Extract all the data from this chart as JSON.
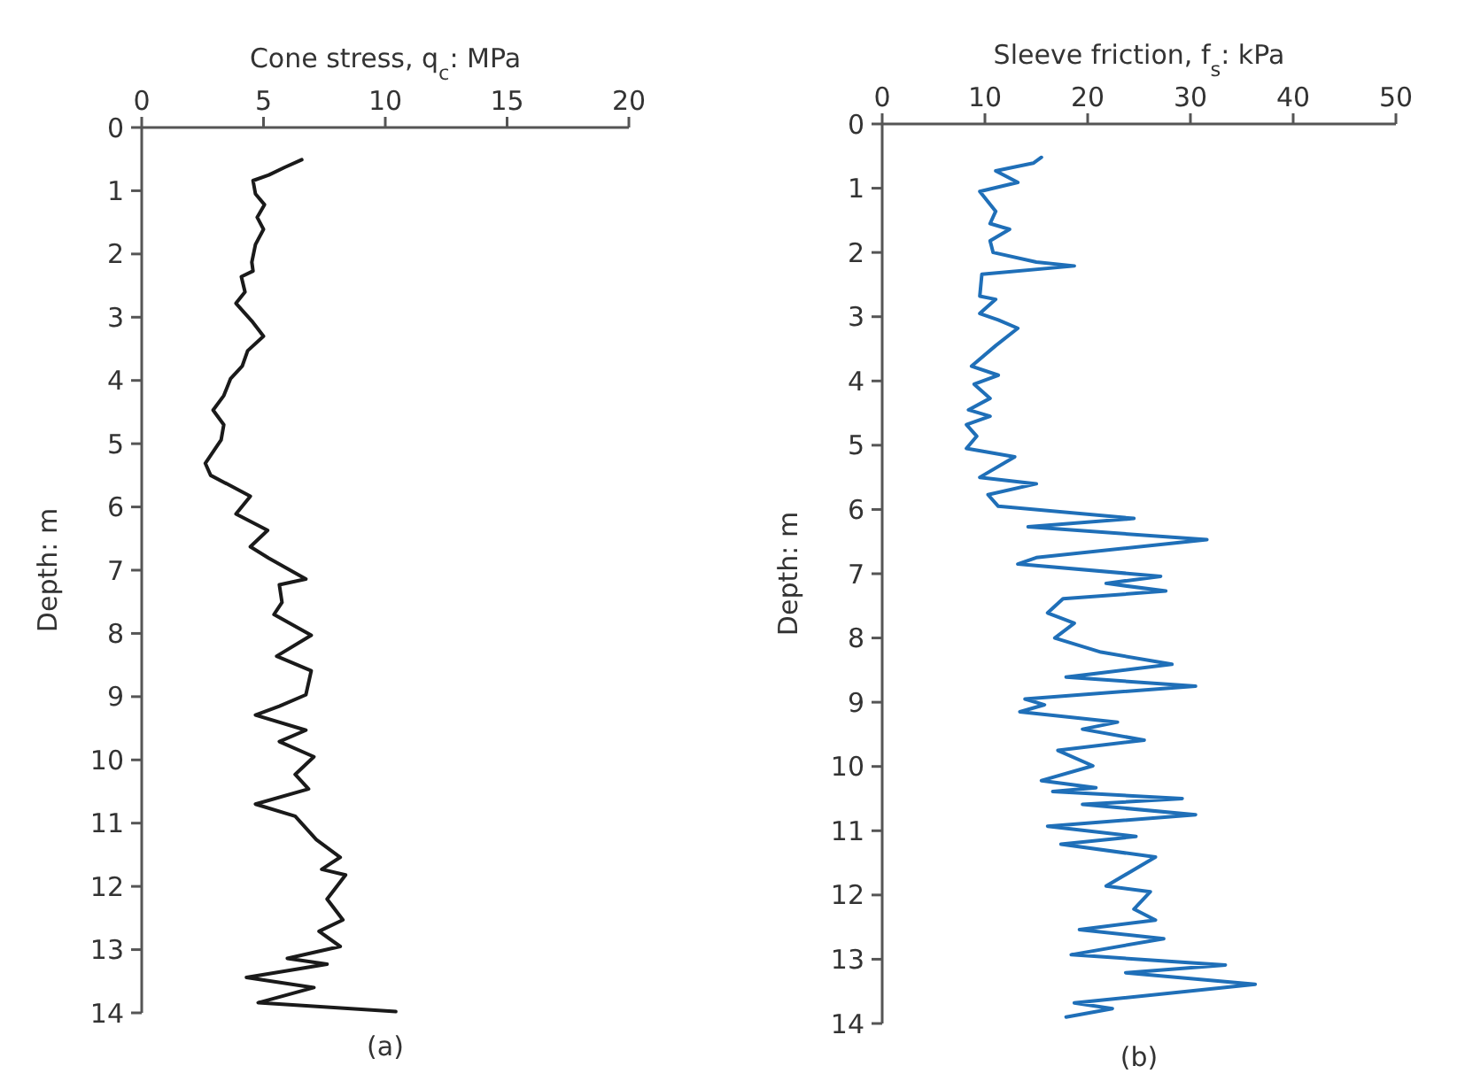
{
  "chart_data": [
    {
      "type": "line",
      "xlabel": "Cone stress, q$_{c}$: MPa",
      "ylabel": "Depth: m",
      "annotations": [
        "(a)"
      ],
      "xlim": [
        0,
        20
      ],
      "xticks": [
        0,
        5,
        10,
        15,
        20
      ],
      "ylim": [
        14,
        0
      ],
      "yticks": [
        0,
        1,
        2,
        3,
        4,
        5,
        6,
        7,
        8,
        9,
        10,
        11,
        12,
        13,
        14
      ],
      "series": [
        {
          "color": "#1a1a1a",
          "x": [
            6.57,
            5.87,
            5.22,
            4.57,
            4.67,
            5.04,
            4.74,
            5.0,
            4.67,
            4.52,
            4.57,
            4.09,
            4.24,
            3.87,
            4.52,
            5.0,
            4.35,
            4.13,
            3.65,
            3.37,
            2.93,
            3.37,
            3.26,
            2.61,
            2.83,
            4.46,
            3.87,
            5.17,
            4.46,
            5.22,
            6.74,
            5.65,
            5.76,
            5.43,
            6.96,
            5.54,
            6.96,
            6.74,
            5.65,
            4.67,
            6.74,
            5.65,
            7.07,
            6.3,
            6.85,
            4.67,
            6.3,
            7.17,
            8.15,
            7.39,
            8.37,
            7.61,
            8.26,
            7.28,
            8.15,
            5.98,
            7.61,
            4.3,
            7.07,
            4.78,
            10.43
          ],
          "values": [
            0.51,
            0.63,
            0.75,
            0.84,
            1.05,
            1.22,
            1.42,
            1.61,
            1.85,
            2.13,
            2.27,
            2.36,
            2.6,
            2.78,
            3.06,
            3.3,
            3.53,
            3.77,
            3.97,
            4.24,
            4.47,
            4.7,
            4.94,
            5.31,
            5.5,
            5.83,
            6.11,
            6.37,
            6.63,
            6.81,
            7.14,
            7.23,
            7.51,
            7.7,
            8.03,
            8.36,
            8.59,
            8.97,
            9.15,
            9.29,
            9.53,
            9.71,
            9.95,
            10.23,
            10.46,
            10.7,
            10.89,
            11.26,
            11.54,
            11.73,
            11.82,
            12.2,
            12.53,
            12.71,
            12.95,
            13.14,
            13.23,
            13.44,
            13.6,
            13.84,
            13.98
          ]
        }
      ]
    },
    {
      "type": "line",
      "xlabel": "Sleeve friction, f$_{s}$: kPa",
      "ylabel": "Depth: m",
      "annotations": [
        "(b)"
      ],
      "xlim": [
        0,
        50
      ],
      "xticks": [
        0,
        10,
        20,
        30,
        40,
        50
      ],
      "ylim": [
        14,
        0
      ],
      "yticks": [
        0,
        1,
        2,
        3,
        4,
        5,
        6,
        7,
        8,
        9,
        10,
        11,
        12,
        13,
        14
      ],
      "series": [
        {
          "color": "#1f6fb8",
          "x": [
            15.5,
            14.7,
            11.05,
            13.2,
            9.5,
            11.05,
            10.5,
            12.4,
            10.5,
            10.8,
            15.0,
            18.7,
            9.7,
            9.5,
            11.05,
            9.5,
            11.3,
            13.2,
            11.05,
            8.7,
            11.3,
            8.95,
            10.5,
            8.4,
            10.5,
            8.2,
            9.2,
            8.2,
            12.9,
            9.5,
            15.0,
            10.3,
            11.3,
            24.5,
            14.2,
            31.6,
            15.0,
            13.2,
            27.1,
            21.8,
            27.6,
            17.6,
            16.1,
            18.7,
            16.8,
            21.3,
            28.2,
            17.9,
            30.5,
            13.9,
            15.8,
            13.4,
            22.9,
            19.5,
            25.5,
            17.1,
            20.5,
            15.5,
            20.8,
            16.6,
            29.2,
            19.5,
            30.5,
            16.1,
            24.7,
            17.4,
            26.6,
            21.8,
            26.1,
            24.5,
            26.6,
            19.2,
            27.4,
            18.4,
            33.4,
            23.7,
            36.3,
            18.7,
            22.4,
            17.9
          ],
          "values": [
            0.52,
            0.61,
            0.73,
            0.91,
            1.05,
            1.36,
            1.55,
            1.64,
            1.82,
            2.0,
            2.15,
            2.21,
            2.34,
            2.68,
            2.73,
            2.95,
            3.05,
            3.18,
            3.45,
            3.77,
            3.91,
            4.05,
            4.27,
            4.45,
            4.55,
            4.68,
            4.86,
            5.05,
            5.18,
            5.5,
            5.6,
            5.77,
            5.95,
            6.14,
            6.27,
            6.47,
            6.75,
            6.85,
            7.04,
            7.15,
            7.27,
            7.39,
            7.61,
            7.77,
            8.0,
            8.22,
            8.41,
            8.61,
            8.75,
            8.95,
            9.04,
            9.15,
            9.31,
            9.42,
            9.59,
            9.75,
            9.99,
            10.22,
            10.33,
            10.39,
            10.5,
            10.59,
            10.75,
            10.93,
            11.09,
            11.21,
            11.41,
            11.86,
            11.95,
            12.22,
            12.39,
            12.54,
            12.68,
            12.93,
            13.09,
            13.21,
            13.39,
            13.68,
            13.77,
            13.9
          ]
        }
      ]
    }
  ]
}
